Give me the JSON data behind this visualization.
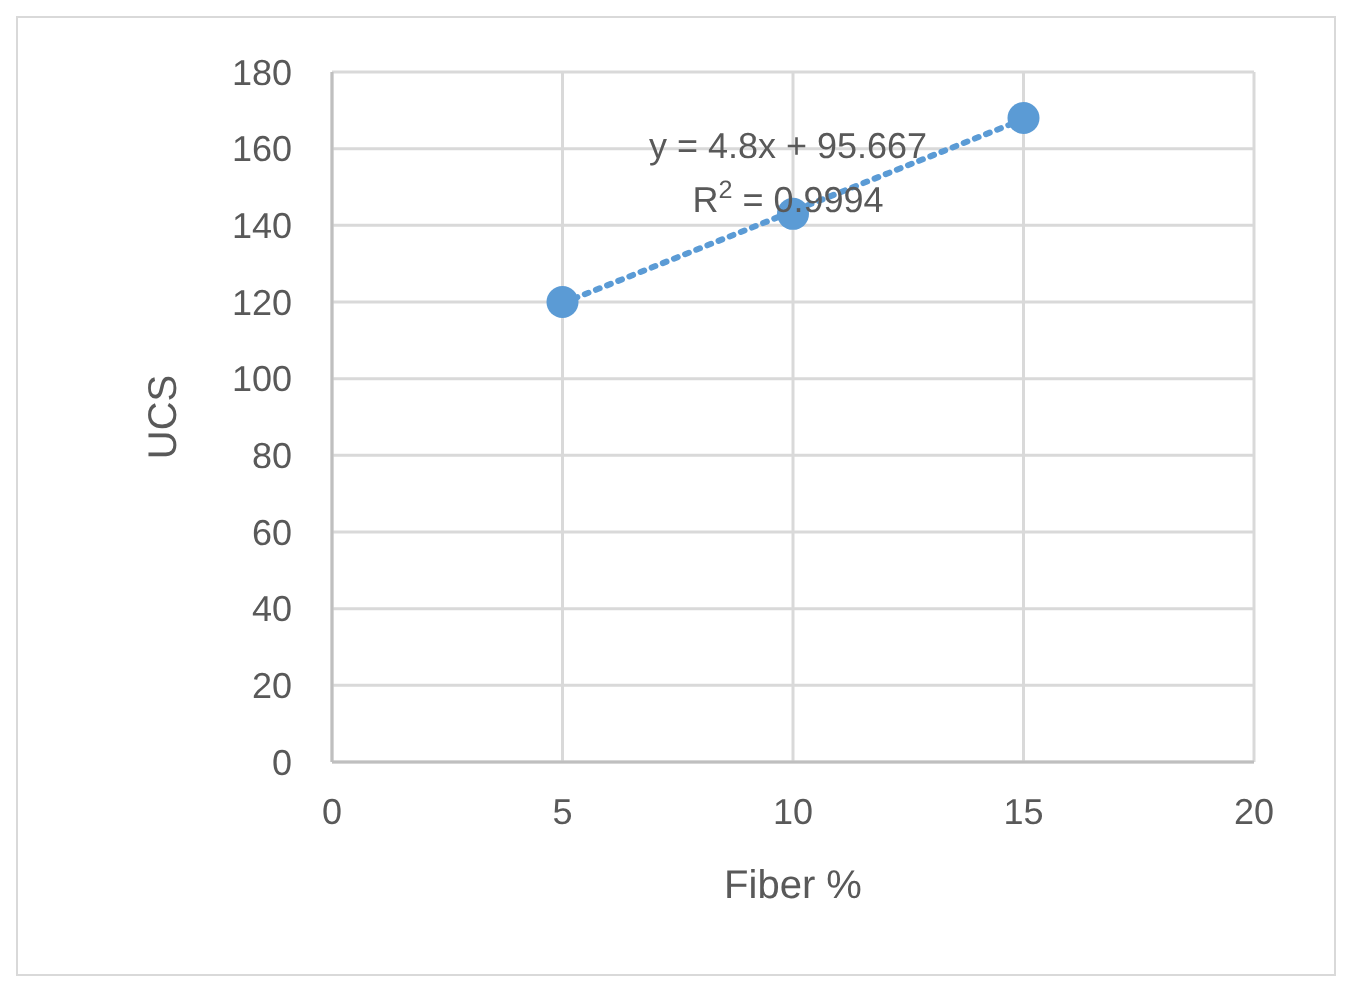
{
  "chart_data": {
    "type": "scatter",
    "xlabel": "Fiber %",
    "ylabel": "UCS",
    "annotations": [
      "y = 4.8x + 95.667",
      "R$^{2}$ = 0.9994"
    ],
    "series": [
      {
        "color": "#5b9bd5",
        "x": [
          5,
          10,
          15
        ],
        "values": [
          120,
          143,
          168
        ]
      },
      {
        "type": "line",
        "color": "#5b9bd5",
        "x": [
          5,
          15
        ],
        "values": [
          119.7,
          167.7
        ],
        "line_style": "dotted",
        "marker": "none"
      }
    ],
    "xlim": [
      0,
      20
    ],
    "xticks": [
      0,
      5,
      10,
      15,
      20
    ],
    "ylim": [
      0,
      180
    ],
    "yticks": [
      0,
      20,
      40,
      60,
      80,
      100,
      120,
      140,
      160,
      180
    ],
    "grid": true,
    "marker": "circle"
  }
}
